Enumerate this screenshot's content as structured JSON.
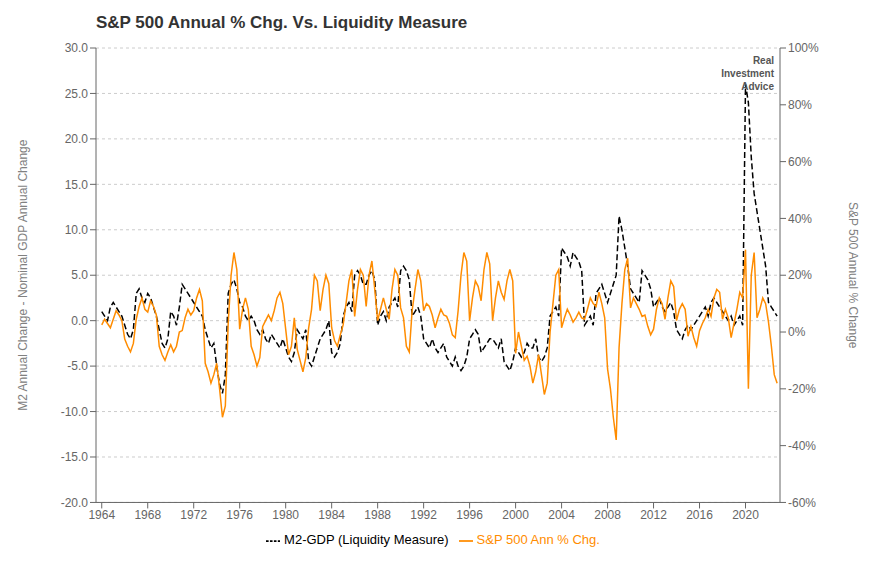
{
  "chart_data": {
    "type": "line",
    "title": "S&P 500 Annual % Chg. Vs. Liquidity Measure",
    "ylabel": "M2 Annual Change - Nominal GDP Annual Change",
    "y2label": "S&P 500 Annual % Change",
    "xlim": [
      1963.5,
      2023.0
    ],
    "ylim": [
      -20.0,
      30.0
    ],
    "y2lim": [
      -60,
      100
    ],
    "xticks": [
      1964,
      1968,
      1972,
      1976,
      1980,
      1984,
      1988,
      1992,
      1996,
      2000,
      2004,
      2008,
      2012,
      2016,
      2020
    ],
    "yticks": [
      {
        "value": -20.0,
        "label": "-20.0"
      },
      {
        "value": -15.0,
        "label": "-15.0"
      },
      {
        "value": -10.0,
        "label": "-10.0"
      },
      {
        "value": -5.0,
        "label": "-5.0"
      },
      {
        "value": 0.0,
        "label": "0.0"
      },
      {
        "value": 5.0,
        "label": "5.0"
      },
      {
        "value": 10.0,
        "label": "10.0"
      },
      {
        "value": 15.0,
        "label": "15.0"
      },
      {
        "value": 20.0,
        "label": "20.0"
      },
      {
        "value": 25.0,
        "label": "25.0"
      },
      {
        "value": 30.0,
        "label": "30.0"
      }
    ],
    "y2ticks": [
      {
        "value": -60,
        "label": "-60%"
      },
      {
        "value": -40,
        "label": "-40%"
      },
      {
        "value": -20,
        "label": "-20%"
      },
      {
        "value": 0,
        "label": "0%"
      },
      {
        "value": 20,
        "label": "20%"
      },
      {
        "value": 40,
        "label": "40%"
      },
      {
        "value": 60,
        "label": "60%"
      },
      {
        "value": 80,
        "label": "80%"
      },
      {
        "value": 100,
        "label": "100%"
      }
    ],
    "grid": true,
    "legend": "bottom",
    "annotations": [
      "Real\nInvestment\nAdvice"
    ],
    "x": [
      1964.0,
      1964.25,
      1964.5,
      1964.75,
      1965.0,
      1965.25,
      1965.5,
      1965.75,
      1966.0,
      1966.25,
      1966.5,
      1966.75,
      1967.0,
      1967.25,
      1967.5,
      1967.75,
      1968.0,
      1968.25,
      1968.5,
      1968.75,
      1969.0,
      1969.25,
      1969.5,
      1969.75,
      1970.0,
      1970.25,
      1970.5,
      1970.75,
      1971.0,
      1971.25,
      1971.5,
      1971.75,
      1972.0,
      1972.25,
      1972.5,
      1972.75,
      1973.0,
      1973.25,
      1973.5,
      1973.75,
      1974.0,
      1974.25,
      1974.5,
      1974.75,
      1975.0,
      1975.25,
      1975.5,
      1975.75,
      1976.0,
      1976.25,
      1976.5,
      1976.75,
      1977.0,
      1977.25,
      1977.5,
      1977.75,
      1978.0,
      1978.25,
      1978.5,
      1978.75,
      1979.0,
      1979.25,
      1979.5,
      1979.75,
      1980.0,
      1980.25,
      1980.5,
      1980.75,
      1981.0,
      1981.25,
      1981.5,
      1981.75,
      1982.0,
      1982.25,
      1982.5,
      1982.75,
      1983.0,
      1983.25,
      1983.5,
      1983.75,
      1984.0,
      1984.25,
      1984.5,
      1984.75,
      1985.0,
      1985.25,
      1985.5,
      1985.75,
      1986.0,
      1986.25,
      1986.5,
      1986.75,
      1987.0,
      1987.25,
      1987.5,
      1987.75,
      1988.0,
      1988.25,
      1988.5,
      1988.75,
      1989.0,
      1989.25,
      1989.5,
      1989.75,
      1990.0,
      1990.25,
      1990.5,
      1990.75,
      1991.0,
      1991.25,
      1991.5,
      1991.75,
      1992.0,
      1992.25,
      1992.5,
      1992.75,
      1993.0,
      1993.25,
      1993.5,
      1993.75,
      1994.0,
      1994.25,
      1994.5,
      1994.75,
      1995.0,
      1995.25,
      1995.5,
      1995.75,
      1996.0,
      1996.25,
      1996.5,
      1996.75,
      1997.0,
      1997.25,
      1997.5,
      1997.75,
      1998.0,
      1998.25,
      1998.5,
      1998.75,
      1999.0,
      1999.25,
      1999.5,
      1999.75,
      2000.0,
      2000.25,
      2000.5,
      2000.75,
      2001.0,
      2001.25,
      2001.5,
      2001.75,
      2002.0,
      2002.25,
      2002.5,
      2002.75,
      2003.0,
      2003.25,
      2003.5,
      2003.75,
      2004.0,
      2004.25,
      2004.5,
      2004.75,
      2005.0,
      2005.25,
      2005.5,
      2005.75,
      2006.0,
      2006.25,
      2006.5,
      2006.75,
      2007.0,
      2007.25,
      2007.5,
      2007.75,
      2008.0,
      2008.25,
      2008.5,
      2008.75,
      2009.0,
      2009.25,
      2009.5,
      2009.75,
      2010.0,
      2010.25,
      2010.5,
      2010.75,
      2011.0,
      2011.25,
      2011.5,
      2011.75,
      2012.0,
      2012.25,
      2012.5,
      2012.75,
      2013.0,
      2013.25,
      2013.5,
      2013.75,
      2014.0,
      2014.25,
      2014.5,
      2014.75,
      2015.0,
      2015.25,
      2015.5,
      2015.75,
      2016.0,
      2016.25,
      2016.5,
      2016.75,
      2017.0,
      2017.25,
      2017.5,
      2017.75,
      2018.0,
      2018.25,
      2018.5,
      2018.75,
      2019.0,
      2019.25,
      2019.5,
      2019.75,
      2020.0,
      2020.25,
      2020.5,
      2020.75,
      2021.0,
      2021.25,
      2021.5,
      2021.75,
      2022.0,
      2022.25,
      2022.5,
      2022.75
    ],
    "series": [
      {
        "name": "M2-GDP (Liquidity Measure)",
        "color": "#000000",
        "line_style": "dashed",
        "values": [
          1.0,
          0.5,
          0.0,
          1.5,
          2.0,
          1.5,
          1.0,
          0.5,
          -0.5,
          -1.5,
          -2.0,
          -1.0,
          3.0,
          3.5,
          2.5,
          2.0,
          3.0,
          2.5,
          1.5,
          0.5,
          -1.0,
          -2.5,
          -3.0,
          -2.0,
          1.0,
          0.5,
          -0.5,
          1.5,
          4.0,
          3.5,
          3.0,
          2.5,
          2.0,
          1.5,
          1.0,
          0.5,
          -1.0,
          -2.0,
          -3.0,
          -2.5,
          -5.0,
          -7.0,
          -8.0,
          -6.0,
          3.0,
          4.0,
          4.5,
          3.5,
          2.0,
          1.5,
          0.5,
          0.0,
          0.5,
          0.0,
          -1.0,
          -1.5,
          -1.0,
          -2.0,
          -2.5,
          -1.5,
          -2.0,
          -2.5,
          -3.0,
          -2.0,
          -3.0,
          -4.0,
          -4.5,
          -3.5,
          -1.0,
          -1.5,
          -2.0,
          -1.0,
          -4.5,
          -5.0,
          -4.0,
          -3.0,
          -2.0,
          -1.5,
          -1.0,
          0.0,
          -3.5,
          -4.0,
          -3.5,
          -2.5,
          0.5,
          1.5,
          2.0,
          1.0,
          5.0,
          5.5,
          5.0,
          4.0,
          4.0,
          5.0,
          5.5,
          4.5,
          -0.5,
          0.5,
          1.0,
          0.0,
          1.5,
          2.0,
          2.5,
          1.5,
          5.5,
          6.0,
          5.5,
          4.5,
          0.5,
          1.0,
          1.5,
          0.5,
          -2.0,
          -2.5,
          -3.0,
          -2.0,
          -3.0,
          -3.5,
          -3.0,
          -2.5,
          -4.0,
          -4.5,
          -5.0,
          -4.0,
          -5.0,
          -5.5,
          -5.0,
          -4.0,
          -2.0,
          -1.5,
          -1.0,
          -1.5,
          -3.5,
          -3.0,
          -2.5,
          -2.0,
          -2.0,
          -2.5,
          -3.0,
          -2.0,
          -4.5,
          -5.0,
          -5.5,
          -4.5,
          -3.0,
          -3.5,
          -4.0,
          -3.5,
          -2.5,
          -3.0,
          -3.0,
          -2.0,
          -4.0,
          -4.5,
          -4.0,
          -3.0,
          0.5,
          1.0,
          1.5,
          0.5,
          8.0,
          7.5,
          7.0,
          6.0,
          7.5,
          7.0,
          6.5,
          5.5,
          -0.5,
          0.0,
          0.5,
          -0.5,
          3.0,
          3.5,
          4.0,
          3.0,
          2.0,
          3.0,
          4.0,
          5.0,
          11.5,
          10.0,
          8.0,
          6.0,
          3.5,
          3.0,
          2.5,
          2.0,
          5.5,
          5.0,
          4.5,
          3.5,
          1.5,
          2.0,
          2.5,
          1.5,
          1.0,
          1.5,
          2.0,
          1.0,
          -1.0,
          -1.5,
          -2.0,
          -1.0,
          -0.5,
          -1.0,
          -0.5,
          0.0,
          0.5,
          1.0,
          1.5,
          0.5,
          2.0,
          2.5,
          2.0,
          1.5,
          1.0,
          0.5,
          0.0,
          0.5,
          -0.5,
          0.0,
          0.5,
          -0.5,
          26.0,
          24.0,
          18.0,
          14.0,
          12.0,
          10.0,
          8.0,
          6.0,
          2.0,
          1.5,
          1.0,
          0.5
        ]
      },
      {
        "name": "S&P 500 Ann % Chg.",
        "color": "#FF8C00",
        "line_style": "solid",
        "axis": "y2",
        "values": [
          2.5,
          4.5,
          3.0,
          1.5,
          4.5,
          7.5,
          6.0,
          4.0,
          -2.5,
          -5.0,
          -7.0,
          -4.0,
          4.5,
          9.0,
          12.0,
          8.0,
          7.0,
          11.0,
          9.0,
          6.0,
          -5.0,
          -8.0,
          -10.0,
          -7.0,
          -4.5,
          -7.0,
          -5.0,
          0.0,
          0.5,
          5.0,
          8.0,
          6.0,
          7.5,
          12.0,
          15.0,
          11.0,
          -11.0,
          -14.0,
          -18.0,
          -15.0,
          -11.0,
          -20.0,
          -30.0,
          -26.0,
          3.0,
          20.0,
          28.0,
          22.0,
          1.0,
          8.0,
          12.0,
          8.0,
          -5.0,
          -8.0,
          -12.0,
          -9.0,
          2.0,
          4.0,
          6.0,
          4.0,
          7.5,
          12.0,
          14.0,
          10.0,
          1.0,
          -8.0,
          -5.0,
          5.0,
          -6.0,
          -10.0,
          -14.0,
          -9.0,
          1.5,
          8.0,
          20.0,
          18.0,
          7.5,
          15.0,
          20.0,
          17.0,
          1.5,
          -3.0,
          -5.0,
          -1.0,
          2.5,
          10.0,
          18.0,
          22.0,
          5.5,
          15.0,
          22.0,
          20.0,
          9.0,
          20.0,
          25.0,
          15.0,
          4.0,
          8.0,
          12.0,
          8.0,
          4.5,
          15.0,
          22.0,
          20.0,
          8.5,
          5.0,
          -5.0,
          -7.0,
          7.5,
          15.0,
          22.0,
          18.0,
          7.5,
          10.0,
          9.0,
          6.0,
          1.5,
          5.0,
          8.0,
          6.0,
          5.5,
          3.0,
          -1.0,
          -2.0,
          7.5,
          20.0,
          28.0,
          25.0,
          4.0,
          12.0,
          18.0,
          16.0,
          11.0,
          22.0,
          28.0,
          24.0,
          4.0,
          12.0,
          18.0,
          14.0,
          11.5,
          18.0,
          22.0,
          18.0,
          -7.5,
          0.0,
          -5.0,
          -10.0,
          -8.5,
          -12.0,
          -18.0,
          -14.0,
          -8.0,
          -15.0,
          -22.0,
          -18.0,
          0.0,
          10.0,
          20.0,
          22.0,
          1.5,
          5.0,
          8.0,
          6.0,
          3.5,
          5.0,
          7.0,
          5.0,
          4.5,
          8.0,
          12.0,
          10.0,
          9.0,
          14.0,
          10.0,
          5.0,
          -13.0,
          -20.0,
          -30.0,
          -38.0,
          -5.5,
          10.0,
          22.0,
          26.0,
          8.5,
          12.0,
          10.0,
          8.0,
          5.5,
          6.0,
          2.0,
          -1.0,
          1.0,
          8.0,
          12.0,
          10.0,
          4.5,
          12.0,
          18.0,
          16.0,
          4.0,
          8.0,
          10.0,
          8.0,
          -1.5,
          2.0,
          -2.0,
          -5.0,
          0.5,
          3.0,
          5.0,
          8.0,
          5.5,
          12.0,
          15.0,
          14.0,
          4.5,
          8.0,
          5.0,
          -2.0,
          3.0,
          8.0,
          14.0,
          12.0,
          29.0,
          -20.0,
          20.0,
          28.0,
          5.0,
          8.0,
          12.0,
          10.0,
          3.5,
          -5.0,
          -15.0,
          -18.0
        ]
      }
    ]
  }
}
